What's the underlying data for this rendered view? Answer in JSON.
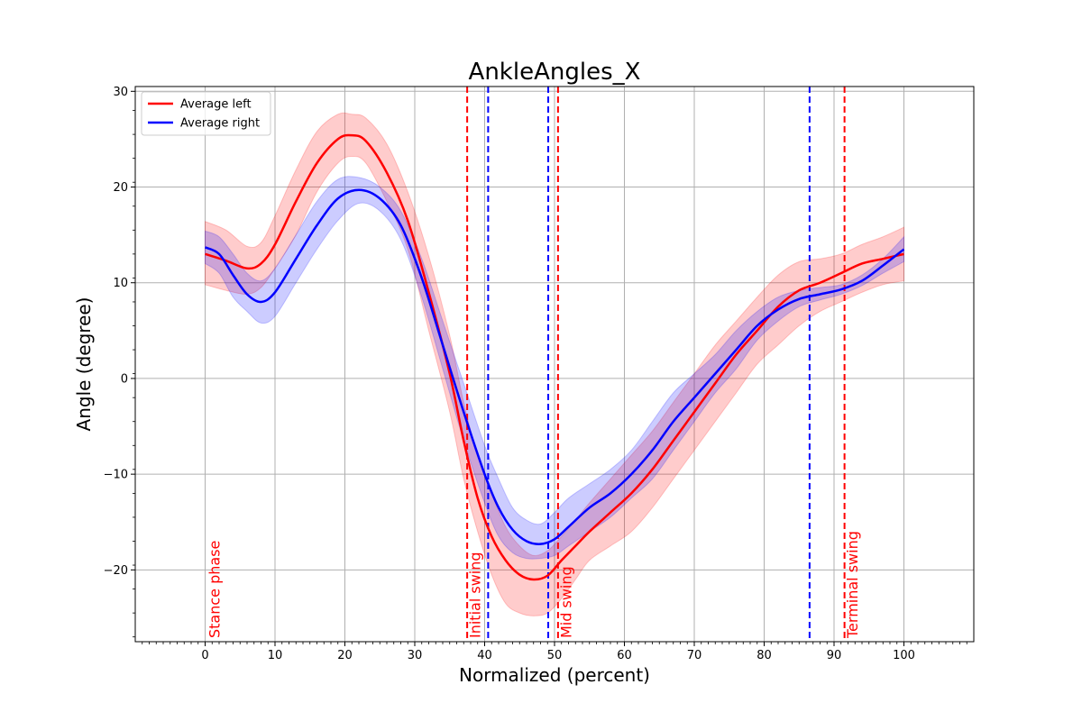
{
  "chart_data": {
    "type": "line",
    "title": "AnkleAngles_X",
    "xlabel": "Normalized (percent)",
    "ylabel": "Angle (degree)",
    "xlim": [
      -10,
      110
    ],
    "ylim": [
      -27.5,
      30.5
    ],
    "xticks": [
      0,
      10,
      20,
      30,
      40,
      50,
      60,
      70,
      80,
      90,
      100
    ],
    "yticks": [
      -20,
      -10,
      0,
      10,
      20,
      30
    ],
    "grid": true,
    "legend_position": "upper-left",
    "series": [
      {
        "name": "Average left",
        "color": "#ff0000",
        "band_color": "#ff0000",
        "x": [
          0,
          3,
          6,
          8,
          10,
          13,
          16,
          19,
          21,
          23,
          26,
          29,
          32,
          35,
          37,
          39,
          41,
          43,
          45,
          47,
          49,
          51,
          53,
          55,
          58,
          61,
          64,
          67,
          70,
          73,
          76,
          79,
          82,
          85,
          88,
          91,
          94,
          97,
          100
        ],
        "y": [
          13.0,
          12.3,
          11.5,
          12.0,
          14.0,
          18.5,
          22.5,
          25.0,
          25.4,
          24.8,
          21.5,
          16.5,
          9.0,
          0.5,
          -6.5,
          -12.5,
          -16.5,
          -19.0,
          -20.5,
          -21.0,
          -20.6,
          -19.0,
          -17.5,
          -16.0,
          -14.0,
          -12.0,
          -9.5,
          -6.5,
          -3.5,
          -0.5,
          2.5,
          5.0,
          7.5,
          9.2,
          10.0,
          11.0,
          12.0,
          12.5,
          13.0
        ],
        "upper": [
          16.4,
          15.5,
          13.8,
          14.2,
          17.0,
          21.8,
          25.8,
          27.6,
          27.6,
          27.2,
          24.5,
          19.5,
          12.8,
          4.5,
          -2.5,
          -8.0,
          -12.0,
          -15.5,
          -17.5,
          -18.5,
          -18.0,
          -16.5,
          -14.8,
          -13.0,
          -10.5,
          -8.0,
          -5.5,
          -2.5,
          0.5,
          3.5,
          6.0,
          8.5,
          10.8,
          12.2,
          12.5,
          13.0,
          14.0,
          14.8,
          15.8
        ],
        "lower": [
          9.8,
          9.2,
          8.8,
          9.5,
          11.5,
          15.0,
          19.5,
          22.5,
          23.2,
          22.5,
          18.5,
          13.5,
          5.0,
          -3.5,
          -10.5,
          -16.0,
          -20.5,
          -23.5,
          -24.5,
          -24.8,
          -24.5,
          -23.0,
          -21.0,
          -19.0,
          -17.5,
          -16.0,
          -13.5,
          -10.5,
          -7.5,
          -4.5,
          -1.5,
          1.5,
          3.5,
          5.5,
          7.0,
          8.0,
          9.0,
          9.8,
          10.2
        ]
      },
      {
        "name": "Average right",
        "color": "#0000ff",
        "band_color": "#0000ff",
        "x": [
          0,
          2,
          4,
          6,
          8,
          10,
          13,
          16,
          19,
          22,
          25,
          28,
          31,
          34,
          37,
          40,
          42,
          44,
          46,
          48,
          50,
          52,
          55,
          58,
          61,
          64,
          67,
          70,
          73,
          76,
          79,
          82,
          85,
          88,
          91,
          94,
          97,
          100
        ],
        "y": [
          13.7,
          13.0,
          10.8,
          8.8,
          8.0,
          9.0,
          12.5,
          16.0,
          18.8,
          19.7,
          18.8,
          16.0,
          10.5,
          3.5,
          -3.5,
          -10.0,
          -13.5,
          -15.8,
          -17.0,
          -17.3,
          -16.8,
          -15.5,
          -13.5,
          -12.0,
          -10.0,
          -7.5,
          -4.5,
          -2.0,
          0.5,
          3.0,
          5.5,
          7.2,
          8.3,
          8.8,
          9.3,
          10.2,
          11.8,
          13.5
        ],
        "upper": [
          15.4,
          14.8,
          13.0,
          11.0,
          10.2,
          11.5,
          15.0,
          18.5,
          20.8,
          21.0,
          20.0,
          17.5,
          12.5,
          6.0,
          -0.5,
          -7.0,
          -10.5,
          -13.5,
          -14.8,
          -15.2,
          -14.0,
          -12.5,
          -11.0,
          -9.5,
          -7.5,
          -4.5,
          -1.5,
          0.5,
          2.5,
          5.0,
          7.0,
          8.5,
          9.2,
          9.5,
          9.8,
          10.8,
          12.5,
          14.8
        ],
        "lower": [
          12.0,
          11.0,
          8.5,
          7.0,
          5.8,
          6.5,
          10.0,
          13.5,
          16.5,
          18.3,
          17.5,
          14.5,
          8.5,
          1.0,
          -6.5,
          -13.0,
          -16.5,
          -18.2,
          -18.8,
          -18.8,
          -18.5,
          -17.5,
          -16.0,
          -14.5,
          -12.5,
          -10.5,
          -7.5,
          -4.5,
          -1.5,
          1.0,
          4.0,
          6.0,
          7.5,
          8.2,
          8.8,
          9.7,
          11.0,
          12.2
        ]
      }
    ],
    "vlines": [
      {
        "x": 37.5,
        "color": "#ff0000"
      },
      {
        "x": 50.5,
        "color": "#ff0000"
      },
      {
        "x": 91.5,
        "color": "#ff0000"
      },
      {
        "x": 40.5,
        "color": "#0000ff"
      },
      {
        "x": 49.1,
        "color": "#0000ff"
      },
      {
        "x": 86.5,
        "color": "#0000ff"
      }
    ],
    "annotations": [
      {
        "text": "Stance phase",
        "x": 1.5,
        "color": "#ff0000"
      },
      {
        "text": "Initial swing",
        "x": 38.8,
        "color": "#ff0000"
      },
      {
        "text": "Mid swing",
        "x": 51.8,
        "color": "#ff0000"
      },
      {
        "text": "Terminal swing",
        "x": 92.8,
        "color": "#ff0000"
      }
    ]
  }
}
